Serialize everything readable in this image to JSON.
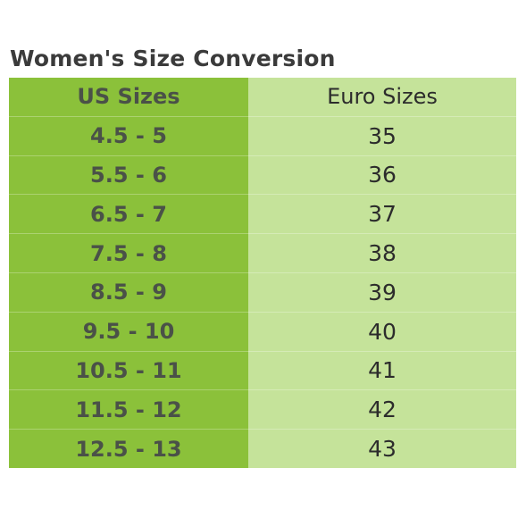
{
  "title": "Women's Size Conversion",
  "table": {
    "headers": {
      "us": "US Sizes",
      "euro": "Euro Sizes"
    },
    "rows": [
      {
        "us": "4.5 - 5",
        "euro": "35"
      },
      {
        "us": "5.5 - 6",
        "euro": "36"
      },
      {
        "us": "6.5 - 7",
        "euro": "37"
      },
      {
        "us": "7.5 - 8",
        "euro": "38"
      },
      {
        "us": "8.5 - 9",
        "euro": "39"
      },
      {
        "us": "9.5 - 10",
        "euro": "40"
      },
      {
        "us": "10.5 - 11",
        "euro": "41"
      },
      {
        "us": "11.5 - 12",
        "euro": "42"
      },
      {
        "us": "12.5 - 13",
        "euro": "43"
      }
    ]
  },
  "colors": {
    "us_column": "#8bc13a",
    "euro_column": "#c5e39a",
    "title_text": "#3b3b3b"
  }
}
